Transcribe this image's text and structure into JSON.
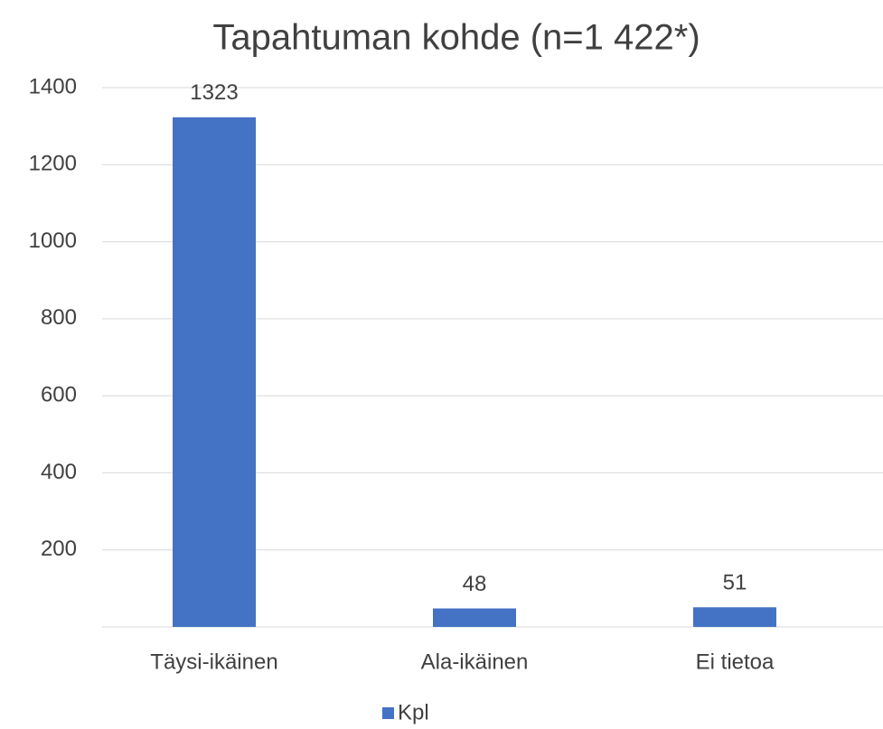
{
  "chart_data": {
    "type": "bar",
    "title": "Tapahtuman kohde (n=1 422*)",
    "categories": [
      "Täysi-ikäinen",
      "Ala-ikäinen",
      "Ei tietoa"
    ],
    "series": [
      {
        "name": "Kpl",
        "color": "#4472c4",
        "values": [
          1323,
          48,
          51
        ]
      }
    ],
    "ylim": [
      0,
      1400
    ],
    "yticks": [
      200,
      400,
      600,
      800,
      1000,
      1200,
      1400
    ],
    "grid": true,
    "legend": "bottom"
  }
}
